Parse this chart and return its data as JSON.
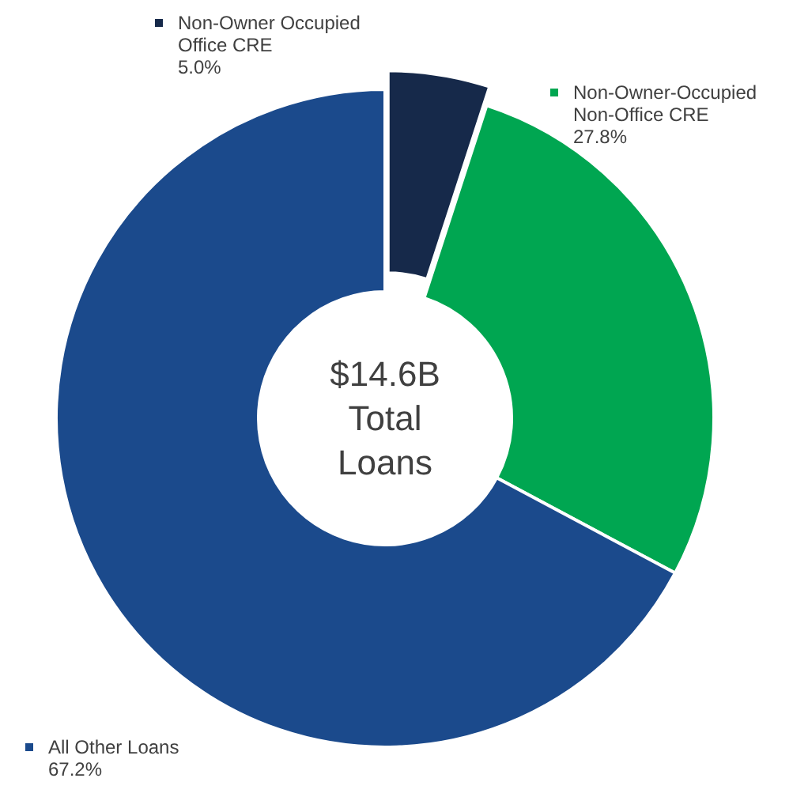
{
  "chart_data": {
    "type": "donut",
    "categories": [
      "Non-Owner Occupied Office CRE",
      "Non-Owner-Occupied Non-Office CRE",
      "All Other Loans"
    ],
    "values": [
      5.0,
      27.8,
      67.2
    ],
    "colors": [
      "#16294a",
      "#00a651",
      "#1b4a8c"
    ],
    "value_labels": [
      "5.0%",
      "27.8%",
      "67.2%"
    ],
    "annotations": [
      "$14.6B\nTotal\nLoans"
    ],
    "legend": "top"
  }
}
